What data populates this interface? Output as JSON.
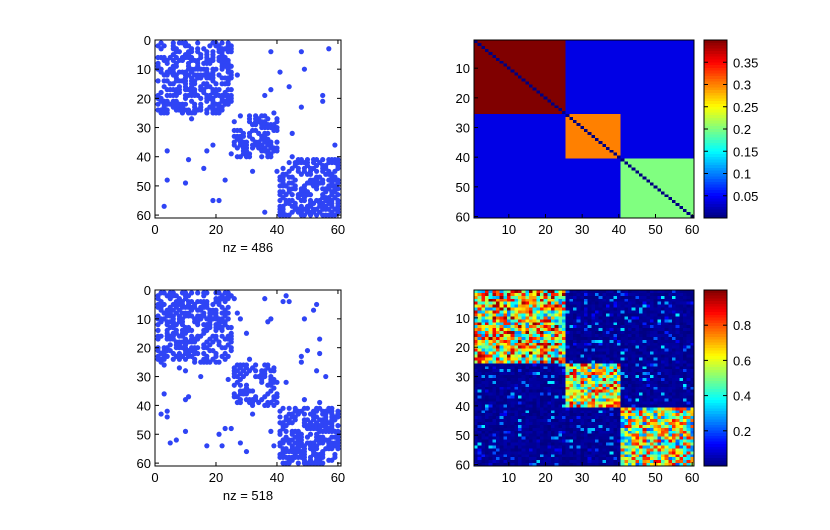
{
  "chart_data": [
    {
      "type": "scatter",
      "panel": "spy-top-left",
      "xlabel": "nz = 486",
      "xlim": [
        0,
        61
      ],
      "ylim": [
        0,
        61
      ],
      "yreversed": true,
      "xticks": [
        "0",
        "20",
        "40",
        "60"
      ],
      "yticks": [
        "0",
        "10",
        "20",
        "30",
        "40",
        "50",
        "60"
      ],
      "marker_color": "#2f44f5",
      "blocks": [
        [
          1,
          25
        ],
        [
          26,
          40
        ],
        [
          41,
          60
        ]
      ],
      "block_density": 0.48,
      "offblock_density": 0.018,
      "seed": 7
    },
    {
      "type": "heatmap",
      "panel": "image-top-right",
      "xlim": [
        0.5,
        60.5
      ],
      "ylim": [
        0.5,
        60.5
      ],
      "xticks": [
        "10",
        "20",
        "30",
        "40",
        "50",
        "60"
      ],
      "yticks": [
        "10",
        "20",
        "30",
        "40",
        "50",
        "60"
      ],
      "colormap": "jet",
      "clim": [
        0,
        0.4
      ],
      "colorbar_ticks": [
        "0.05",
        "0.1",
        "0.15",
        "0.2",
        "0.25",
        "0.3",
        "0.35"
      ],
      "blocks": [
        {
          "rows": [
            1,
            25
          ],
          "value": 0.4
        },
        {
          "rows": [
            26,
            40
          ],
          "value": 0.3
        },
        {
          "rows": [
            41,
            60
          ],
          "value": 0.2
        }
      ],
      "background_value": 0.04,
      "diagonal_value": 0
    },
    {
      "type": "scatter",
      "panel": "spy-bottom-left",
      "xlabel": "nz = 518",
      "xlim": [
        0,
        61
      ],
      "ylim": [
        0,
        61
      ],
      "yreversed": true,
      "xticks": [
        "0",
        "20",
        "40",
        "60"
      ],
      "yticks": [
        "0",
        "10",
        "20",
        "30",
        "40",
        "50",
        "60"
      ],
      "marker_color": "#2f44f5",
      "blocks": [
        [
          1,
          25
        ],
        [
          26,
          40
        ],
        [
          41,
          60
        ]
      ],
      "block_density": 0.5,
      "offblock_density": 0.02,
      "seed": 19
    },
    {
      "type": "heatmap",
      "panel": "image-bottom-right",
      "xlim": [
        0.5,
        60.5
      ],
      "ylim": [
        0.5,
        60.5
      ],
      "xticks": [
        "10",
        "20",
        "30",
        "40",
        "50",
        "60"
      ],
      "yticks": [
        "10",
        "20",
        "30",
        "40",
        "50",
        "60"
      ],
      "colormap": "jet",
      "clim": [
        0,
        1
      ],
      "colorbar_ticks": [
        "0.2",
        "0.4",
        "0.6",
        "0.8"
      ],
      "blocks": [
        {
          "rows": [
            1,
            25
          ],
          "value_range": [
            0.25,
            1.0
          ]
        },
        {
          "rows": [
            26,
            40
          ],
          "value_range": [
            0.25,
            0.95
          ]
        },
        {
          "rows": [
            41,
            60
          ],
          "value_range": [
            0.2,
            0.9
          ]
        }
      ],
      "background_range": [
        0.0,
        0.12
      ],
      "seed": 31
    }
  ]
}
